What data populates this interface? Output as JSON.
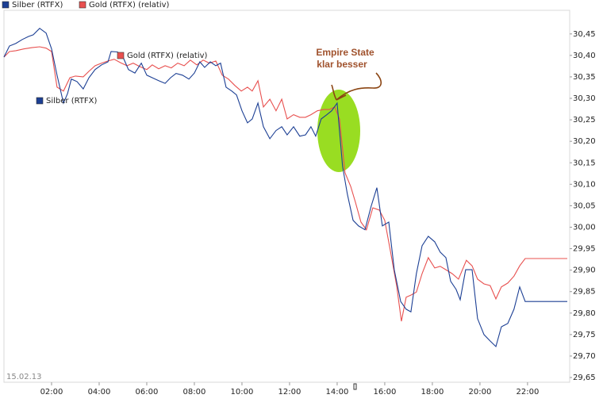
{
  "chart_data": {
    "type": "line",
    "date_label": "15.02.13",
    "annotation": [
      "Empire State",
      "klar besser"
    ],
    "series": [
      {
        "name": "Silber (RTFX)",
        "color": "#1c3f94",
        "x": [
          0,
          0.23,
          0.5,
          0.77,
          1.03,
          1.23,
          1.5,
          1.77,
          2,
          2.23,
          2.5,
          2.67,
          2.83,
          3.07,
          3.33,
          3.57,
          3.83,
          4.1,
          4.37,
          4.5,
          4.77,
          5,
          5.23,
          5.5,
          5.77,
          6,
          6.23,
          6.5,
          6.77,
          7,
          7.23,
          7.5,
          7.77,
          8,
          8.23,
          8.43,
          8.67,
          8.9,
          9.1,
          9.33,
          9.57,
          9.77,
          10,
          10.23,
          10.43,
          10.67,
          10.9,
          11.17,
          11.43,
          11.67,
          11.9,
          12.17,
          12.43,
          12.67,
          12.9,
          13.1,
          13.33,
          13.57,
          13.77,
          14,
          14.23,
          14.43,
          14.67,
          14.9,
          15.17,
          15.43,
          15.67,
          15.9,
          16.17,
          16.4,
          16.67,
          16.9,
          17.1,
          17.33,
          17.57,
          17.83,
          18.1,
          18.33,
          18.57,
          18.77,
          19,
          19.17,
          19.4,
          19.67,
          19.9,
          20.17,
          20.43,
          20.67,
          20.9,
          21.17,
          21.43,
          21.67,
          21.9,
          23.67
        ],
        "values": [
          30.396,
          30.422,
          30.428,
          30.437,
          30.444,
          30.448,
          30.463,
          30.452,
          30.415,
          30.354,
          30.289,
          30.311,
          30.345,
          30.339,
          30.322,
          30.348,
          30.367,
          30.378,
          30.385,
          30.409,
          30.408,
          30.396,
          30.367,
          30.359,
          30.382,
          30.354,
          30.348,
          30.341,
          30.335,
          30.348,
          30.358,
          30.354,
          30.345,
          30.359,
          30.385,
          30.372,
          30.385,
          30.376,
          30.382,
          30.326,
          30.317,
          30.308,
          30.271,
          30.243,
          30.252,
          30.289,
          30.234,
          30.206,
          30.225,
          30.234,
          30.215,
          30.234,
          30.212,
          30.215,
          30.234,
          30.212,
          30.252,
          30.262,
          30.271,
          30.289,
          30.141,
          30.077,
          30.016,
          30.003,
          29.994,
          30.049,
          30.092,
          30.003,
          30.012,
          29.901,
          29.827,
          29.809,
          29.803,
          29.892,
          29.957,
          29.979,
          29.966,
          29.942,
          29.929,
          29.874,
          29.855,
          29.831,
          29.901,
          29.901,
          29.787,
          29.75,
          29.735,
          29.722,
          29.768,
          29.776,
          29.809,
          29.861,
          29.827,
          29.827
        ]
      },
      {
        "name": "Gold (RTFX) (relativ)",
        "color": "#e8504f",
        "x": [
          0,
          0.23,
          0.5,
          0.83,
          1.17,
          1.5,
          1.77,
          2,
          2.23,
          2.5,
          2.77,
          3,
          3.33,
          3.57,
          3.83,
          4.1,
          4.37,
          4.63,
          4.9,
          5.17,
          5.43,
          5.7,
          6,
          6.23,
          6.5,
          6.77,
          7.03,
          7.3,
          7.57,
          7.83,
          8.1,
          8.37,
          8.63,
          8.9,
          9.17,
          9.43,
          9.7,
          9.97,
          10.23,
          10.43,
          10.67,
          10.9,
          11.17,
          11.43,
          11.67,
          11.9,
          12.17,
          12.43,
          12.67,
          12.9,
          13.17,
          13.43,
          13.67,
          13.9,
          14.1,
          14.33,
          14.57,
          14.77,
          15,
          15.23,
          15.5,
          15.77,
          16,
          16.23,
          16.5,
          16.7,
          16.9,
          17.1,
          17.33,
          17.57,
          17.83,
          18.1,
          18.33,
          18.57,
          18.83,
          19.1,
          19.43,
          19.67,
          19.9,
          20.17,
          20.43,
          20.67,
          20.9,
          21.17,
          21.43,
          21.67,
          21.9,
          23.67
        ],
        "values": [
          30.396,
          30.409,
          30.411,
          30.415,
          30.418,
          30.42,
          30.417,
          30.409,
          30.326,
          30.317,
          30.348,
          30.352,
          30.35,
          30.363,
          30.376,
          30.382,
          30.387,
          30.391,
          30.383,
          30.376,
          30.382,
          30.374,
          30.367,
          30.378,
          30.369,
          30.376,
          30.371,
          30.382,
          30.376,
          30.389,
          30.378,
          30.389,
          30.382,
          30.387,
          30.354,
          30.345,
          30.33,
          30.317,
          30.326,
          30.317,
          30.341,
          30.28,
          30.298,
          30.271,
          30.298,
          30.252,
          30.262,
          30.256,
          30.256,
          30.262,
          30.271,
          30.274,
          30.274,
          30.28,
          30.252,
          30.127,
          30.095,
          30.058,
          30.012,
          29.994,
          30.045,
          30.04,
          30.016,
          29.947,
          29.864,
          29.781,
          29.837,
          29.842,
          29.849,
          29.892,
          29.929,
          29.905,
          29.909,
          29.901,
          29.892,
          29.879,
          29.923,
          29.91,
          29.879,
          29.868,
          29.864,
          29.833,
          29.861,
          29.87,
          29.886,
          29.91,
          29.927,
          29.927
        ]
      }
    ],
    "xlim": [
      0,
      23.77
    ],
    "xticks": [
      {
        "value": 2,
        "label": "02:00"
      },
      {
        "value": 4,
        "label": "04:00"
      },
      {
        "value": 6,
        "label": "06:00"
      },
      {
        "value": 8,
        "label": "08:00"
      },
      {
        "value": 10,
        "label": "10:00"
      },
      {
        "value": 12,
        "label": "12:00"
      },
      {
        "value": 14,
        "label": "14:00"
      },
      {
        "value": 16,
        "label": "16:00"
      },
      {
        "value": 18,
        "label": "18:00"
      },
      {
        "value": 20,
        "label": "20:00"
      },
      {
        "value": 22,
        "label": "22:00"
      }
    ],
    "ylim": [
      29.639,
      30.505
    ],
    "yticks": [
      {
        "value": 29.65,
        "label": "29,65"
      },
      {
        "value": 29.7,
        "label": "29,70"
      },
      {
        "value": 29.75,
        "label": "29,75"
      },
      {
        "value": 29.8,
        "label": "29,80"
      },
      {
        "value": 29.85,
        "label": "29,85"
      },
      {
        "value": 29.9,
        "label": "29,90"
      },
      {
        "value": 29.95,
        "label": "29,95"
      },
      {
        "value": 30,
        "label": "30,00"
      },
      {
        "value": 30.05,
        "label": "30,05"
      },
      {
        "value": 30.1,
        "label": "30,10"
      },
      {
        "value": 30.15,
        "label": "30,15"
      },
      {
        "value": 30.2,
        "label": "30,20"
      },
      {
        "value": 30.25,
        "label": "30,25"
      },
      {
        "value": 30.3,
        "label": "30,30"
      },
      {
        "value": 30.35,
        "label": "30,35"
      },
      {
        "value": 30.4,
        "label": "30,40"
      },
      {
        "value": 30.45,
        "label": "30,45"
      }
    ],
    "grid": false,
    "legend": "top"
  }
}
